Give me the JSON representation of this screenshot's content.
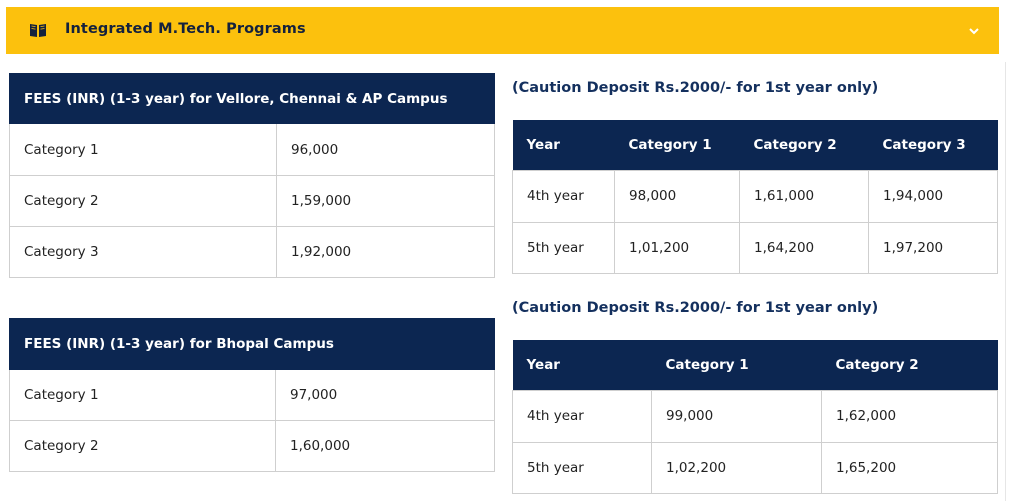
{
  "accordion": {
    "title": "Integrated M.Tech. Programs"
  },
  "left_tables": [
    {
      "header": "FEES (INR) (1-3 year) for Vellore, Chennai & AP Campus",
      "rows": [
        {
          "label": "Category 1",
          "value": "96,000"
        },
        {
          "label": "Category 2",
          "value": "1,59,000"
        },
        {
          "label": "Category 3",
          "value": "1,92,000"
        }
      ]
    },
    {
      "header": "FEES (INR) (1-3 year) for Bhopal Campus",
      "rows": [
        {
          "label": "Category 1",
          "value": "97,000"
        },
        {
          "label": "Category 2",
          "value": "1,60,000"
        }
      ]
    }
  ],
  "right_tables": [
    {
      "caption": "(Caution Deposit Rs.2000/- for 1st year only)",
      "columns": [
        "Year",
        "Category 1",
        "Category 2",
        "Category 3"
      ],
      "rows": [
        [
          "4th year",
          "98,000",
          "1,61,000",
          "1,94,000"
        ],
        [
          "5th year",
          "1,01,200",
          "1,64,200",
          "1,97,200"
        ]
      ]
    },
    {
      "caption": "(Caution Deposit Rs.2000/- for 1st year only)",
      "columns": [
        "Year",
        "Category 1",
        "Category 2"
      ],
      "rows": [
        [
          "4th year",
          "99,000",
          "1,62,000"
        ],
        [
          "5th year",
          "1,02,200",
          "1,65,200"
        ]
      ]
    }
  ],
  "colors": {
    "accordion_bg": "#fcc10d",
    "header_bg": "#0c2651",
    "caption_text": "#14305e"
  },
  "icons": {
    "accordion_icon": "open-book-icon",
    "toggle_icon": "chevron-down-icon"
  }
}
